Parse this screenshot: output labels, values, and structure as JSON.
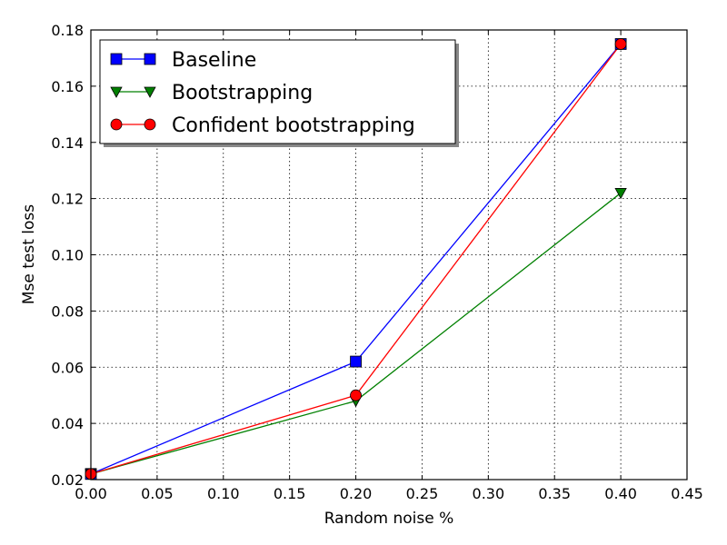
{
  "chart_data": {
    "type": "line",
    "title": "",
    "xlabel": "Random noise %",
    "ylabel": "Mse test loss",
    "xlim": [
      0.0,
      0.45
    ],
    "ylim": [
      0.02,
      0.18
    ],
    "xticks": [
      "0.00",
      "0.05",
      "0.10",
      "0.15",
      "0.20",
      "0.25",
      "0.30",
      "0.35",
      "0.40",
      "0.45"
    ],
    "yticks": [
      "0.02",
      "0.04",
      "0.06",
      "0.08",
      "0.10",
      "0.12",
      "0.14",
      "0.16",
      "0.18"
    ],
    "grid": true,
    "legend_position": "top-left",
    "series": [
      {
        "name": "Baseline",
        "color": "#0000ff",
        "marker": "square",
        "x": [
          0.0,
          0.2,
          0.4
        ],
        "y": [
          0.022,
          0.062,
          0.175
        ]
      },
      {
        "name": "Bootstrapping",
        "color": "#008000",
        "marker": "triangle-down",
        "x": [
          0.0,
          0.2,
          0.4
        ],
        "y": [
          0.022,
          0.048,
          0.122
        ]
      },
      {
        "name": "Confident bootstrapping",
        "color": "#ff0000",
        "marker": "circle",
        "x": [
          0.0,
          0.2,
          0.4
        ],
        "y": [
          0.022,
          0.05,
          0.175
        ]
      }
    ]
  }
}
